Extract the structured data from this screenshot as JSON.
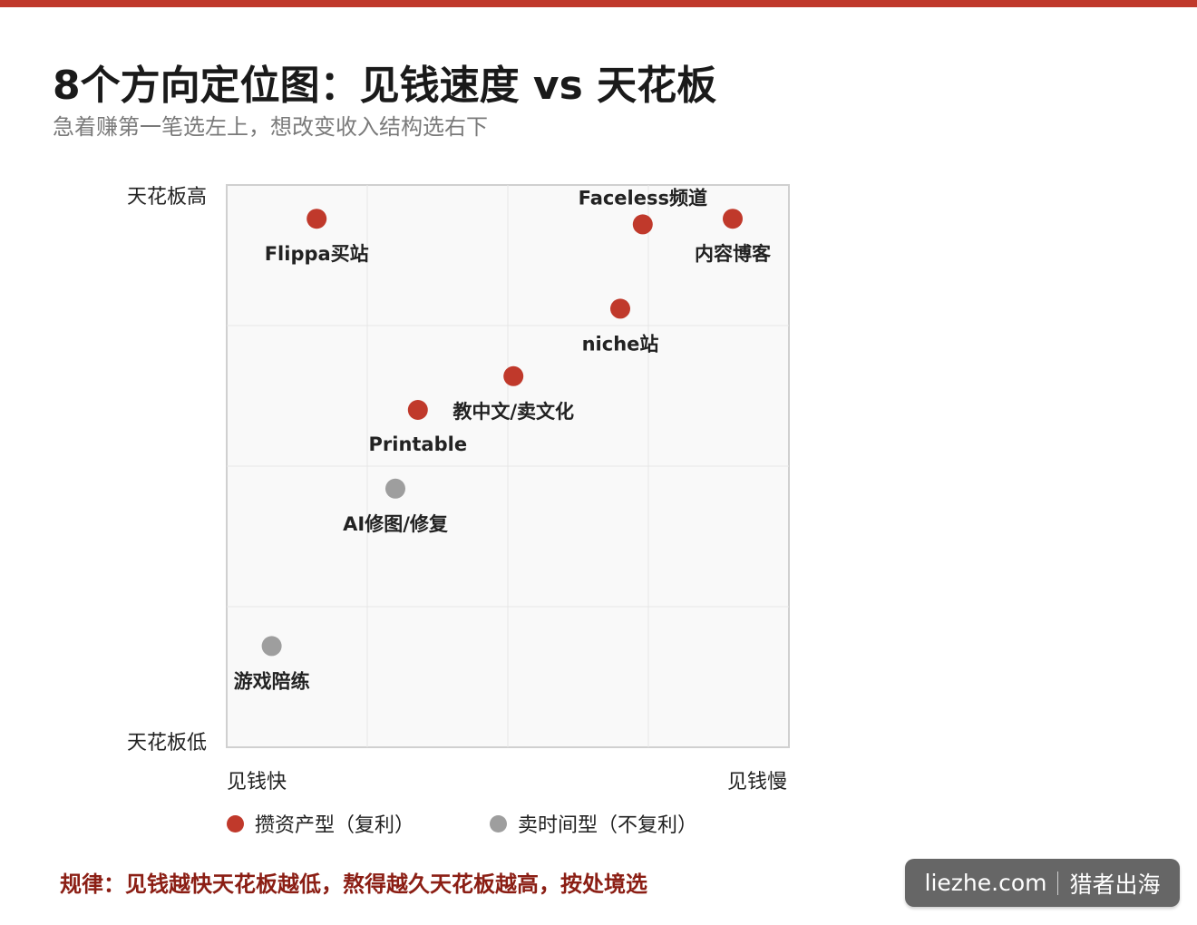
{
  "page": {
    "title": "8个方向定位图：见钱速度 vs 天花板",
    "subtitle": "急着赚第一笔选左上，想改变收入结构选右下",
    "accent_color": "#c0392b",
    "footer_note": "规律：见钱越快天花板越低，熬得越久天花板越高，按处境选",
    "brand": {
      "domain": "liezhe.com",
      "name": "猎者出海"
    }
  },
  "chart_data": {
    "type": "scatter",
    "xlabel_left": "见钱快",
    "xlabel_right": "见钱慢",
    "ylabel_top": "天花板高",
    "ylabel_bottom": "天花板低",
    "xlim": [
      0,
      10
    ],
    "ylim": [
      0,
      10
    ],
    "grid": true,
    "legend_placement": "bottom",
    "series": [
      {
        "name": "攒资产型（复利）",
        "color": "#c0392b",
        "points": [
          {
            "label": "Flippa买站",
            "x": 1.6,
            "y": 9.4
          },
          {
            "label": "Faceless频道",
            "x": 7.4,
            "y": 9.3
          },
          {
            "label": "内容博客",
            "x": 9.0,
            "y": 9.4
          },
          {
            "label": "niche站",
            "x": 7.0,
            "y": 7.8
          },
          {
            "label": "教中文/卖文化",
            "x": 5.1,
            "y": 6.6
          },
          {
            "label": "Printable",
            "x": 3.4,
            "y": 6.0
          }
        ]
      },
      {
        "name": "卖时间型（不复利）",
        "color": "#9e9e9e",
        "points": [
          {
            "label": "AI修图/修复",
            "x": 3.0,
            "y": 4.6
          },
          {
            "label": "游戏陪练",
            "x": 0.8,
            "y": 1.8
          }
        ]
      }
    ]
  }
}
